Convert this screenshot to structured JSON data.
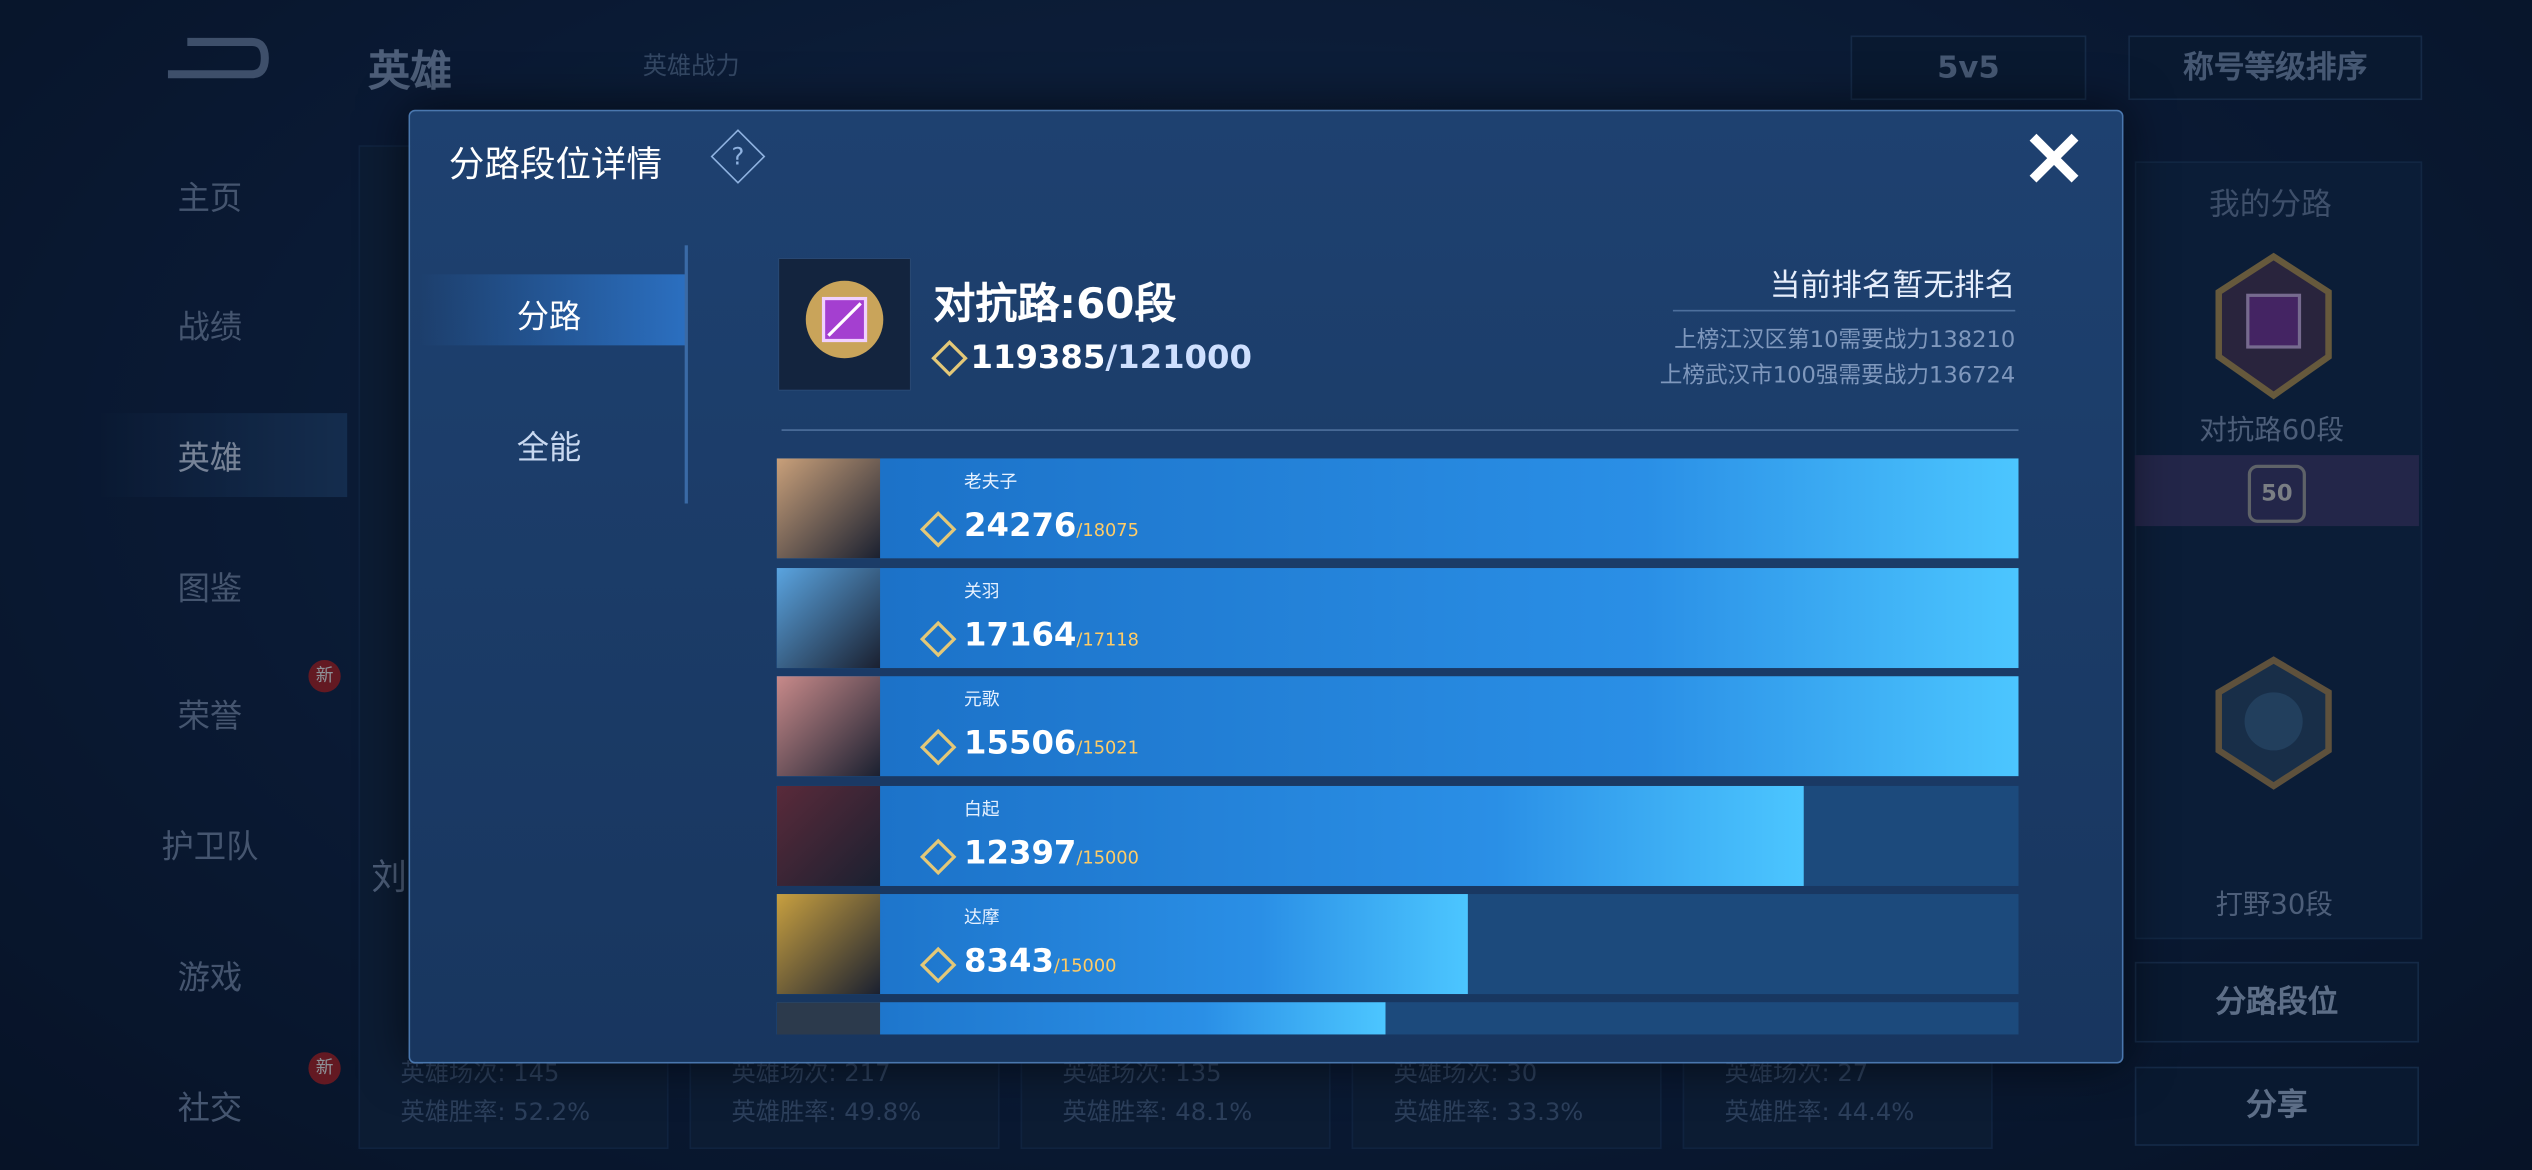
{
  "top_bar": {
    "title": "英雄",
    "power_link": "英雄战力",
    "mode": "5v5",
    "sort": "称号等级排序"
  },
  "nav": [
    {
      "label": "主页"
    },
    {
      "label": "战绩"
    },
    {
      "label": "英雄",
      "active": true
    },
    {
      "label": "图鉴"
    },
    {
      "label": "荣誉",
      "badge": "新"
    },
    {
      "label": "护卫队"
    },
    {
      "label": "游戏"
    },
    {
      "label": "社交",
      "badge": "新"
    }
  ],
  "background_hero_name": "刘",
  "stats": [
    {
      "games": "英雄场次: 145",
      "win_rate": "英雄胜率: 52.2%"
    },
    {
      "games": "英雄场次: 217",
      "win_rate": "英雄胜率: 49.8%"
    },
    {
      "games": "英雄场次: 135",
      "win_rate": "英雄胜率: 48.1%"
    },
    {
      "games": "英雄场次: 30",
      "win_rate": "英雄胜率: 33.3%"
    },
    {
      "games": "英雄场次: 27",
      "win_rate": "英雄胜率: 44.4%"
    }
  ],
  "right_panel": {
    "title": "我的分路",
    "lane1": "对抗路60段",
    "lane1_level": "50",
    "lane2": "打野30段",
    "button1": "分路段位",
    "button2": "分享"
  },
  "modal": {
    "title": "分路段位详情",
    "help": "?",
    "tabs": [
      "分路",
      "全能"
    ],
    "lane_title": "对抗路:60段",
    "power": 119385,
    "power_max": 121000,
    "power_max_label": "/121000",
    "rank_status": "当前排名暂无排名",
    "rank_req1": "上榜江汉区第10需要战力138210",
    "rank_req2": "上榜武汉市100强需要战力136724",
    "heroes": [
      {
        "name": "老夫子",
        "score": 24276,
        "target": 18075,
        "target_label": "/18075"
      },
      {
        "name": "关羽",
        "score": 17164,
        "target": 17118,
        "target_label": "/17118"
      },
      {
        "name": "元歌",
        "score": 15506,
        "target": 15021,
        "target_label": "/15021"
      },
      {
        "name": "白起",
        "score": 12397,
        "target": 15000,
        "target_label": "/15000"
      },
      {
        "name": "达摩",
        "score": 8343,
        "target": 15000,
        "target_label": "/15000"
      }
    ]
  }
}
